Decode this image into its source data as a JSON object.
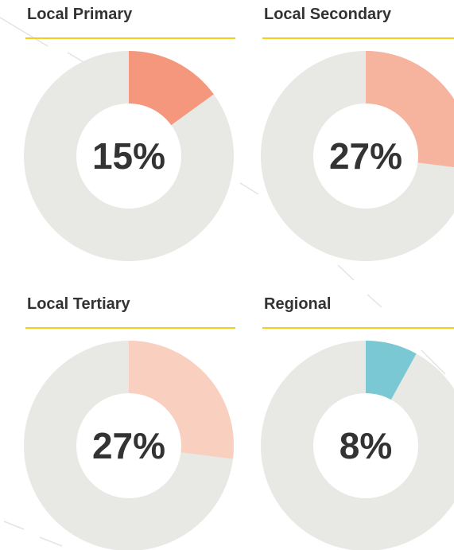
{
  "chart_data": [
    {
      "type": "pie",
      "title": "Local Primary",
      "values": [
        15
      ],
      "value_labels": [
        "15%"
      ],
      "color": "#f4977c"
    },
    {
      "type": "pie",
      "title": "Local Secondary",
      "values": [
        27
      ],
      "value_labels": [
        "27%"
      ],
      "color": "#f6b39e"
    },
    {
      "type": "pie",
      "title": "Local Tertiary",
      "values": [
        27
      ],
      "value_labels": [
        "27%"
      ],
      "color": "#f9cfbf"
    },
    {
      "type": "pie",
      "title": "Regional",
      "values": [
        8
      ],
      "value_labels": [
        "8%"
      ],
      "color": "#7ac8d3"
    }
  ]
}
